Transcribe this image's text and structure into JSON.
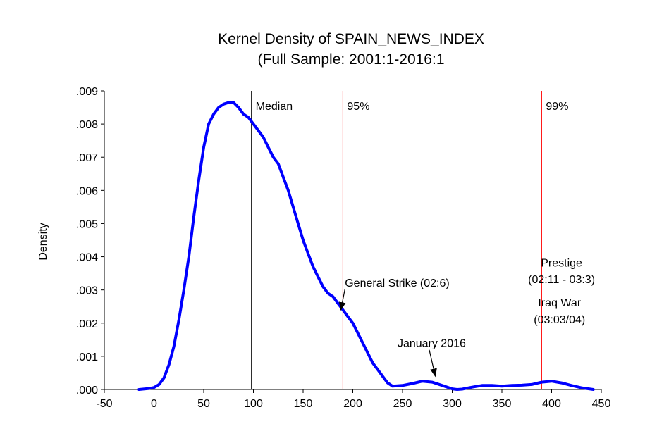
{
  "chart_data": {
    "type": "line",
    "title": "Kernel Density of SPAIN_NEWS_INDEX",
    "subtitle": "(Full Sample: 2001:1-2016:1",
    "xlabel": "",
    "ylabel": "Density",
    "xlim": [
      -50,
      450
    ],
    "ylim": [
      0,
      0.009
    ],
    "xticks": [
      "-50",
      "0",
      "50",
      "100",
      "150",
      "200",
      "250",
      "300",
      "350",
      "400",
      "450"
    ],
    "yticks": [
      ".000",
      ".001",
      ".002",
      ".003",
      ".004",
      ".005",
      ".006",
      ".007",
      ".008",
      ".009"
    ],
    "grid": false,
    "series": [
      {
        "x": [
          -15,
          -5,
          0,
          5,
          10,
          15,
          20,
          25,
          30,
          35,
          40,
          45,
          50,
          55,
          60,
          65,
          70,
          75,
          80,
          85,
          90,
          95,
          100,
          105,
          110,
          115,
          120,
          125,
          130,
          135,
          140,
          145,
          150,
          155,
          160,
          165,
          170,
          175,
          180,
          185,
          190,
          195,
          200,
          205,
          210,
          215,
          220,
          225,
          230,
          235,
          240,
          250,
          260,
          270,
          280,
          290,
          300,
          305,
          310,
          320,
          330,
          340,
          350,
          360,
          370,
          380,
          390,
          400,
          410,
          420,
          430,
          442
        ],
        "y": [
          0.0,
          3e-05,
          6e-05,
          0.00015,
          0.00035,
          0.00075,
          0.0013,
          0.0021,
          0.003,
          0.004,
          0.0052,
          0.0063,
          0.0073,
          0.008,
          0.0083,
          0.0085,
          0.0086,
          0.00865,
          0.00865,
          0.0085,
          0.0083,
          0.0082,
          0.008,
          0.0078,
          0.0076,
          0.0073,
          0.007,
          0.0068,
          0.0064,
          0.006,
          0.0055,
          0.005,
          0.0045,
          0.0041,
          0.0037,
          0.0034,
          0.0031,
          0.0029,
          0.0028,
          0.0026,
          0.0024,
          0.0022,
          0.002,
          0.0017,
          0.0014,
          0.0011,
          0.0008,
          0.0006,
          0.0004,
          0.0002,
          0.0001,
          0.00012,
          0.00018,
          0.00025,
          0.00022,
          0.00012,
          2e-05,
          0.0,
          1e-05,
          7e-05,
          0.00012,
          0.00012,
          0.0001,
          0.00012,
          0.00013,
          0.00015,
          0.00022,
          0.00025,
          0.0002,
          0.00012,
          5e-05,
          0.0
        ],
        "color": "#0000ff"
      }
    ],
    "vlines": [
      {
        "x": 98,
        "label": "Median",
        "color": "#000000",
        "label_side": "right"
      },
      {
        "x": 190,
        "label": "95%",
        "color": "#ff0000",
        "label_side": "right"
      },
      {
        "x": 390,
        "label": "99%",
        "color": "#ff0000",
        "label_side": "right"
      }
    ],
    "annotations": [
      {
        "text": "General Strike (02:6)",
        "tx": 192,
        "ty": 0.0031,
        "ax": 188,
        "ay": 0.0024,
        "arrow": true
      },
      {
        "text": "January 2016",
        "tx": 245,
        "ty": 0.00128,
        "ax": 283,
        "ay": 0.0004,
        "arrow": true
      },
      {
        "text": "Prestige",
        "tx": 410,
        "ty": 0.0037,
        "arrow": false,
        "anchor": "middle"
      },
      {
        "text": "(02:11 - 03:3)",
        "tx": 410,
        "ty": 0.0032,
        "arrow": false,
        "anchor": "middle"
      },
      {
        "text": "Iraq War",
        "tx": 408,
        "ty": 0.0025,
        "arrow": false,
        "anchor": "middle"
      },
      {
        "text": "(03:03/04)",
        "tx": 408,
        "ty": 0.002,
        "arrow": false,
        "anchor": "middle"
      }
    ]
  }
}
